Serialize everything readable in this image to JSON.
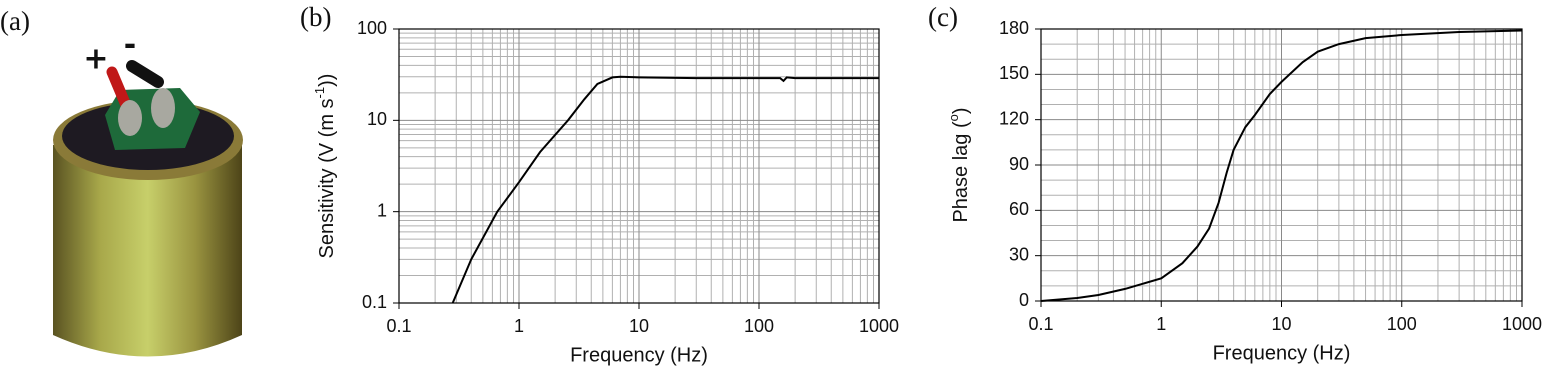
{
  "photo": {
    "label": "(a)",
    "plus": "+",
    "minus": "-"
  },
  "chart_data": [
    {
      "type": "line",
      "panel_label": "(b)",
      "xlabel": "Frequency (Hz)",
      "ylabel": [
        "Sensitivity (V (m s",
        "-1",
        "))"
      ],
      "xlog": true,
      "ylog": true,
      "grid": true,
      "minor_grid": true,
      "xlim": [
        0.1,
        1000
      ],
      "xticks": [
        0.1,
        1,
        10,
        100,
        1000
      ],
      "ylim": [
        0.1,
        100
      ],
      "yticks": [
        0.1,
        1,
        10,
        100
      ],
      "x": [
        0.28,
        0.4,
        0.66,
        1,
        1.5,
        2.56,
        3.5,
        4.5,
        6,
        7,
        10,
        30,
        100,
        150,
        160,
        170,
        200,
        1000
      ],
      "series": [
        {
          "color": "#000000",
          "values": [
            0.1,
            0.3,
            1,
            2.1,
            4.5,
            10,
            17,
            25,
            29.5,
            30,
            29.5,
            29,
            29,
            29,
            27,
            29.5,
            29,
            29
          ]
        }
      ]
    },
    {
      "type": "line",
      "panel_label": "(c)",
      "xlabel": "Frequency (Hz)",
      "ylabel": [
        "Phase lag (",
        "o",
        ")"
      ],
      "xlog": true,
      "ylog": false,
      "grid": true,
      "minor_grid": true,
      "xlim": [
        0.1,
        1000
      ],
      "xticks": [
        0.1,
        1,
        10,
        100,
        1000
      ],
      "ylim": [
        0,
        180
      ],
      "yticks": [
        0,
        30,
        60,
        90,
        120,
        150,
        180
      ],
      "x": [
        0.1,
        0.2,
        0.3,
        0.5,
        1,
        1.5,
        2,
        2.5,
        3,
        3.5,
        4,
        5,
        6,
        8,
        10,
        15,
        20,
        30,
        50,
        100,
        300,
        1000
      ],
      "series": [
        {
          "color": "#000000",
          "values": [
            0,
            2,
            4,
            8,
            15,
            25,
            36,
            48,
            65,
            85,
            100,
            115,
            123,
            137,
            145,
            158,
            165,
            170,
            174,
            176,
            178,
            179
          ]
        }
      ]
    }
  ]
}
